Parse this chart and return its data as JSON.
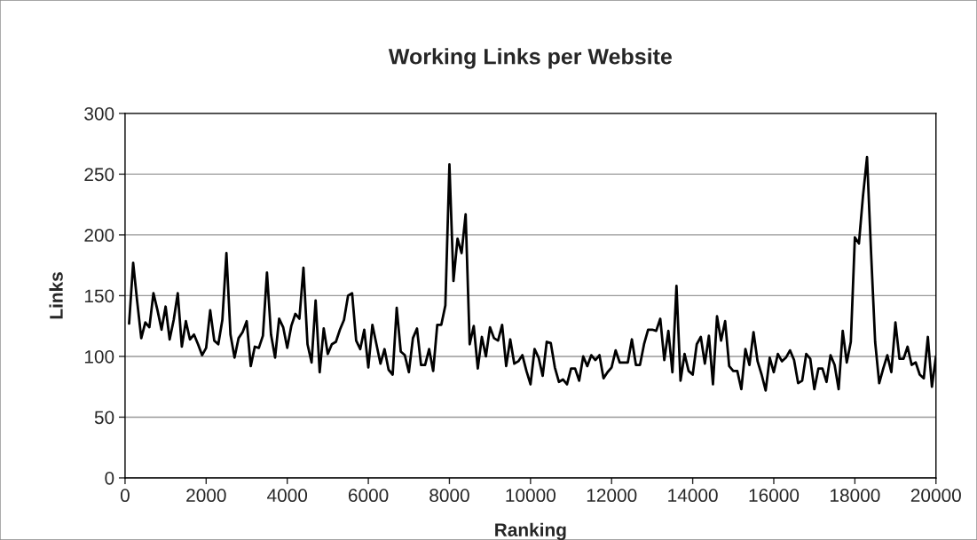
{
  "chart_data": {
    "type": "line",
    "title": "Working Links per Website",
    "xlabel": "Ranking",
    "ylabel": "Links",
    "x": [
      100,
      200,
      300,
      400,
      500,
      600,
      700,
      800,
      900,
      1000,
      1100,
      1200,
      1300,
      1400,
      1500,
      1600,
      1700,
      1800,
      1900,
      2000,
      2100,
      2200,
      2300,
      2400,
      2500,
      2600,
      2700,
      2800,
      2900,
      3000,
      3100,
      3200,
      3300,
      3400,
      3500,
      3600,
      3700,
      3800,
      3900,
      4000,
      4100,
      4200,
      4300,
      4400,
      4500,
      4600,
      4700,
      4800,
      4900,
      5000,
      5100,
      5200,
      5300,
      5400,
      5500,
      5600,
      5700,
      5800,
      5900,
      6000,
      6100,
      6200,
      6300,
      6400,
      6500,
      6600,
      6700,
      6800,
      6900,
      7000,
      7100,
      7200,
      7300,
      7400,
      7500,
      7600,
      7700,
      7800,
      7900,
      8000,
      8100,
      8200,
      8300,
      8400,
      8500,
      8600,
      8700,
      8800,
      8900,
      9000,
      9100,
      9200,
      9300,
      9400,
      9500,
      9600,
      9700,
      9800,
      9900,
      10000,
      10100,
      10200,
      10300,
      10400,
      10500,
      10600,
      10700,
      10800,
      10900,
      11000,
      11100,
      11200,
      11300,
      11400,
      11500,
      11600,
      11700,
      11800,
      11900,
      12000,
      12100,
      12200,
      12300,
      12400,
      12500,
      12600,
      12700,
      12800,
      12900,
      13000,
      13100,
      13200,
      13300,
      13400,
      13500,
      13600,
      13700,
      13800,
      13900,
      14000,
      14100,
      14200,
      14300,
      14400,
      14500,
      14600,
      14700,
      14800,
      14900,
      15000,
      15100,
      15200,
      15300,
      15400,
      15500,
      15600,
      15700,
      15800,
      15900,
      16000,
      16100,
      16200,
      16300,
      16400,
      16500,
      16600,
      16700,
      16800,
      16900,
      17000,
      17100,
      17200,
      17300,
      17400,
      17500,
      17600,
      17700,
      17800,
      17900,
      18000,
      18100,
      18200,
      18300,
      18400,
      18500,
      18600,
      18700,
      18800,
      18900,
      19000,
      19100,
      19200,
      19300,
      19400,
      19500,
      19600,
      19700,
      19800,
      19900,
      20000
    ],
    "series": [
      {
        "color": "#000000",
        "values": [
          127,
          177,
          145,
          115,
          128,
          124,
          152,
          138,
          122,
          141,
          114,
          130,
          152,
          108,
          129,
          114,
          118,
          110,
          101,
          107,
          138,
          113,
          110,
          130,
          185,
          118,
          99,
          115,
          120,
          129,
          92,
          108,
          107,
          117,
          169,
          118,
          99,
          131,
          124,
          107,
          125,
          135,
          131,
          173,
          110,
          95,
          146,
          87,
          123,
          102,
          110,
          112,
          122,
          130,
          150,
          152,
          113,
          106,
          122,
          91,
          126,
          110,
          94,
          106,
          89,
          85,
          140,
          104,
          101,
          87,
          115,
          123,
          93,
          93,
          106,
          88,
          126,
          126,
          142,
          258,
          162,
          197,
          185,
          217,
          110,
          125,
          90,
          116,
          100,
          124,
          115,
          113,
          126,
          92,
          114,
          94,
          96,
          101,
          88,
          77,
          106,
          99,
          84,
          112,
          111,
          91,
          79,
          81,
          77,
          90,
          90,
          80,
          100,
          92,
          101,
          97,
          101,
          82,
          87,
          91,
          105,
          95,
          95,
          95,
          114,
          93,
          93,
          110,
          122,
          122,
          121,
          131,
          97,
          121,
          87,
          158,
          80,
          102,
          88,
          85,
          110,
          116,
          94,
          117,
          77,
          133,
          113,
          129,
          92,
          88,
          88,
          73,
          106,
          93,
          120,
          96,
          85,
          72,
          99,
          87,
          102,
          96,
          99,
          105,
          97,
          78,
          80,
          102,
          98,
          73,
          90,
          90,
          79,
          101,
          93,
          73,
          121,
          95,
          112,
          198,
          193,
          232,
          264,
          185,
          112,
          78,
          90,
          101,
          87,
          128,
          98,
          98,
          108,
          93,
          95,
          85,
          82,
          116,
          75,
          100
        ]
      }
    ],
    "xlim": [
      0,
      20000
    ],
    "xticks": [
      0,
      2000,
      4000,
      6000,
      8000,
      10000,
      12000,
      14000,
      16000,
      18000,
      20000
    ],
    "ylim": [
      0,
      300
    ],
    "yticks": [
      0,
      50,
      100,
      150,
      200,
      250,
      300
    ],
    "grid": "y",
    "legend": false,
    "marker": "none",
    "line_style": "solid"
  }
}
